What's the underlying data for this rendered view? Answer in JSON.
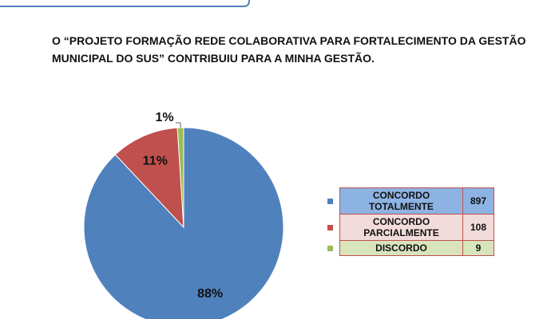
{
  "chart_data": {
    "type": "pie",
    "title": "O “PROJETO FORMAÇÃO REDE COLABORATIVA PARA FORTALECIMENTO DA GESTÃO MUNICIPAL DO SUS” CONTRIBUIU PARA A MINHA GESTÃO.",
    "categories": [
      "CONCORDO TOTALMENTE",
      "CONCORDO PARCIALMENTE",
      "DISCORDO"
    ],
    "values": [
      88,
      11,
      1
    ],
    "value_labels": [
      "88%",
      "11%",
      "1%"
    ],
    "counts": [
      897,
      108,
      9
    ],
    "colors": [
      "#4f81bd",
      "#c0504d",
      "#9bbb59"
    ],
    "row_colors": [
      "#8db3e2",
      "#f2dcdb",
      "#d7e4bc"
    ]
  }
}
